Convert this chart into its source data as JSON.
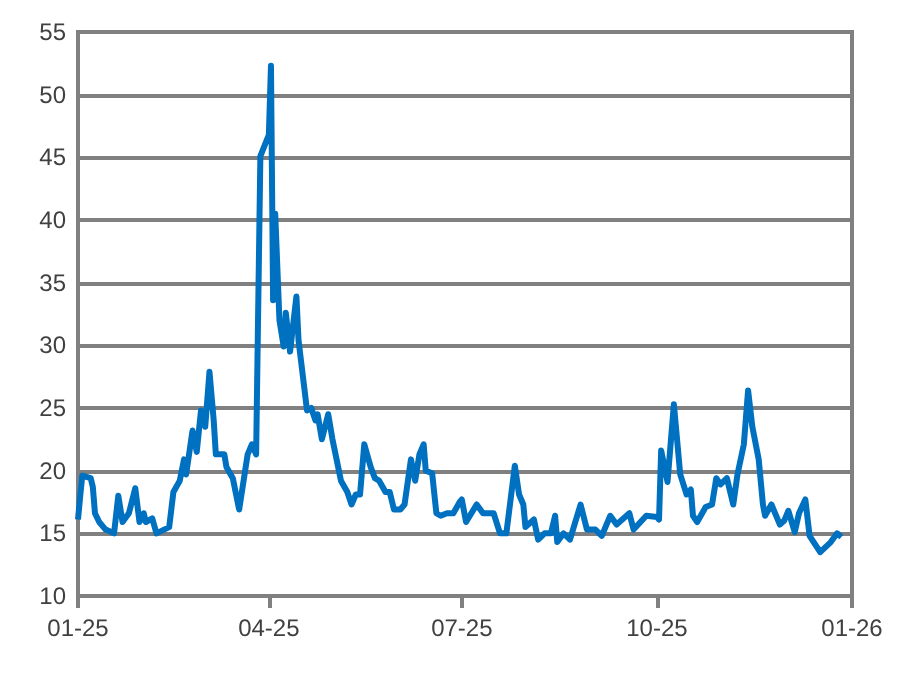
{
  "chart_data": {
    "type": "line",
    "grid": "y",
    "marker": "none",
    "line_style": "solid",
    "xlim": [
      "2025-01-01",
      "2026-01-01"
    ],
    "xticks": [
      {
        "value": "2025-01-01",
        "label": "01-25"
      },
      {
        "value": "2025-04-01",
        "label": "04-25"
      },
      {
        "value": "2025-07-01",
        "label": "07-25"
      },
      {
        "value": "2025-10-01",
        "label": "10-25"
      },
      {
        "value": "2026-01-01",
        "label": "01-26"
      }
    ],
    "ylim": [
      10,
      55
    ],
    "yticks": [
      10,
      15,
      20,
      25,
      30,
      35,
      40,
      45,
      50,
      55
    ],
    "x": [
      "2025-01-01",
      "2025-01-02",
      "2025-01-03",
      "2025-01-07",
      "2025-01-08",
      "2025-01-09",
      "2025-01-11",
      "2025-01-14",
      "2025-01-18",
      "2025-01-20",
      "2025-01-22",
      "2025-01-25",
      "2025-01-28",
      "2025-01-30",
      "2025-02-01",
      "2025-02-02",
      "2025-02-05",
      "2025-02-07",
      "2025-02-13",
      "2025-02-15",
      "2025-02-18",
      "2025-02-20",
      "2025-02-21",
      "2025-02-24",
      "2025-02-26",
      "2025-02-28",
      "2025-03-02",
      "2025-03-04",
      "2025-03-06",
      "2025-03-07",
      "2025-03-11",
      "2025-03-12",
      "2025-03-15",
      "2025-03-18",
      "2025-03-22",
      "2025-03-24",
      "2025-03-26",
      "2025-03-28",
      "2025-04-01",
      "2025-04-02",
      "2025-04-03",
      "2025-04-04",
      "2025-04-06",
      "2025-04-08",
      "2025-04-09",
      "2025-04-11",
      "2025-04-14",
      "2025-04-15",
      "2025-04-19",
      "2025-04-21",
      "2025-04-23",
      "2025-04-24",
      "2025-04-26",
      "2025-04-29",
      "2025-05-01",
      "2025-05-05",
      "2025-05-08",
      "2025-05-10",
      "2025-05-12",
      "2025-05-14",
      "2025-05-16",
      "2025-05-19",
      "2025-05-21",
      "2025-05-23",
      "2025-05-26",
      "2025-05-28",
      "2025-05-30",
      "2025-06-02",
      "2025-06-04",
      "2025-06-07",
      "2025-06-09",
      "2025-06-11",
      "2025-06-13",
      "2025-06-14",
      "2025-06-17",
      "2025-06-19",
      "2025-06-21",
      "2025-06-24",
      "2025-06-27",
      "2025-06-30",
      "2025-07-01",
      "2025-07-03",
      "2025-07-08",
      "2025-07-11",
      "2025-07-16",
      "2025-07-19",
      "2025-07-22",
      "2025-07-26",
      "2025-07-28",
      "2025-07-30",
      "2025-07-31",
      "2025-08-04",
      "2025-08-06",
      "2025-08-09",
      "2025-08-12",
      "2025-08-14",
      "2025-08-15",
      "2025-08-18",
      "2025-08-21",
      "2025-08-26",
      "2025-08-29",
      "2025-09-02",
      "2025-09-05",
      "2025-09-09",
      "2025-09-12",
      "2025-09-18",
      "2025-09-20",
      "2025-09-26",
      "2025-10-01",
      "2025-10-02",
      "2025-10-03",
      "2025-10-06",
      "2025-10-09",
      "2025-10-12",
      "2025-10-15",
      "2025-10-17",
      "2025-10-18",
      "2025-10-20",
      "2025-10-24",
      "2025-10-27",
      "2025-10-29",
      "2025-10-31",
      "2025-11-03",
      "2025-11-06",
      "2025-11-08",
      "2025-11-11",
      "2025-11-13",
      "2025-11-15",
      "2025-11-18",
      "2025-11-20",
      "2025-11-21",
      "2025-11-24",
      "2025-11-28",
      "2025-11-30",
      "2025-12-02",
      "2025-12-05",
      "2025-12-07",
      "2025-12-10",
      "2025-12-12",
      "2025-12-17",
      "2025-12-22",
      "2025-12-25",
      "2025-12-27"
    ],
    "series": [
      {
        "color": "#0070c0",
        "values": [
          16.1,
          17.9,
          19.6,
          19.4,
          18.7,
          16.6,
          15.9,
          15.3,
          15.0,
          18.0,
          15.9,
          16.6,
          18.6,
          15.9,
          16.6,
          15.9,
          16.2,
          15.0,
          15.5,
          18.3,
          19.2,
          20.9,
          19.7,
          23.2,
          21.5,
          24.8,
          23.5,
          27.9,
          24.0,
          21.3,
          21.3,
          20.3,
          19.4,
          16.9,
          21.3,
          22.1,
          21.3,
          45.1,
          46.8,
          52.3,
          33.6,
          40.5,
          32.0,
          29.9,
          32.6,
          29.5,
          33.9,
          30.4,
          24.8,
          25.0,
          24.0,
          24.5,
          22.5,
          24.5,
          22.5,
          19.2,
          18.3,
          17.3,
          18.1,
          18.1,
          22.1,
          20.3,
          19.4,
          19.2,
          18.3,
          18.3,
          16.9,
          16.9,
          17.3,
          20.9,
          19.2,
          21.3,
          22.1,
          20.0,
          19.8,
          16.6,
          16.4,
          16.6,
          16.6,
          17.5,
          17.7,
          15.9,
          17.3,
          16.6,
          16.6,
          15.0,
          15.0,
          20.4,
          18.1,
          17.3,
          15.5,
          16.1,
          14.5,
          15.0,
          15.0,
          16.4,
          14.3,
          15.0,
          14.5,
          17.3,
          15.3,
          15.3,
          14.8,
          16.4,
          15.7,
          16.6,
          15.3,
          16.4,
          16.3,
          16.1,
          21.6,
          19.1,
          25.3,
          19.7,
          18.1,
          18.5,
          16.4,
          15.9,
          17.1,
          17.3,
          19.4,
          18.9,
          19.4,
          17.3,
          19.7,
          22.1,
          26.4,
          23.5,
          20.9,
          17.3,
          16.4,
          17.3,
          15.7,
          16.0,
          16.8,
          15.1,
          16.6,
          17.7,
          14.8,
          13.5,
          14.3,
          15.0,
          14.7
        ]
      }
    ]
  }
}
